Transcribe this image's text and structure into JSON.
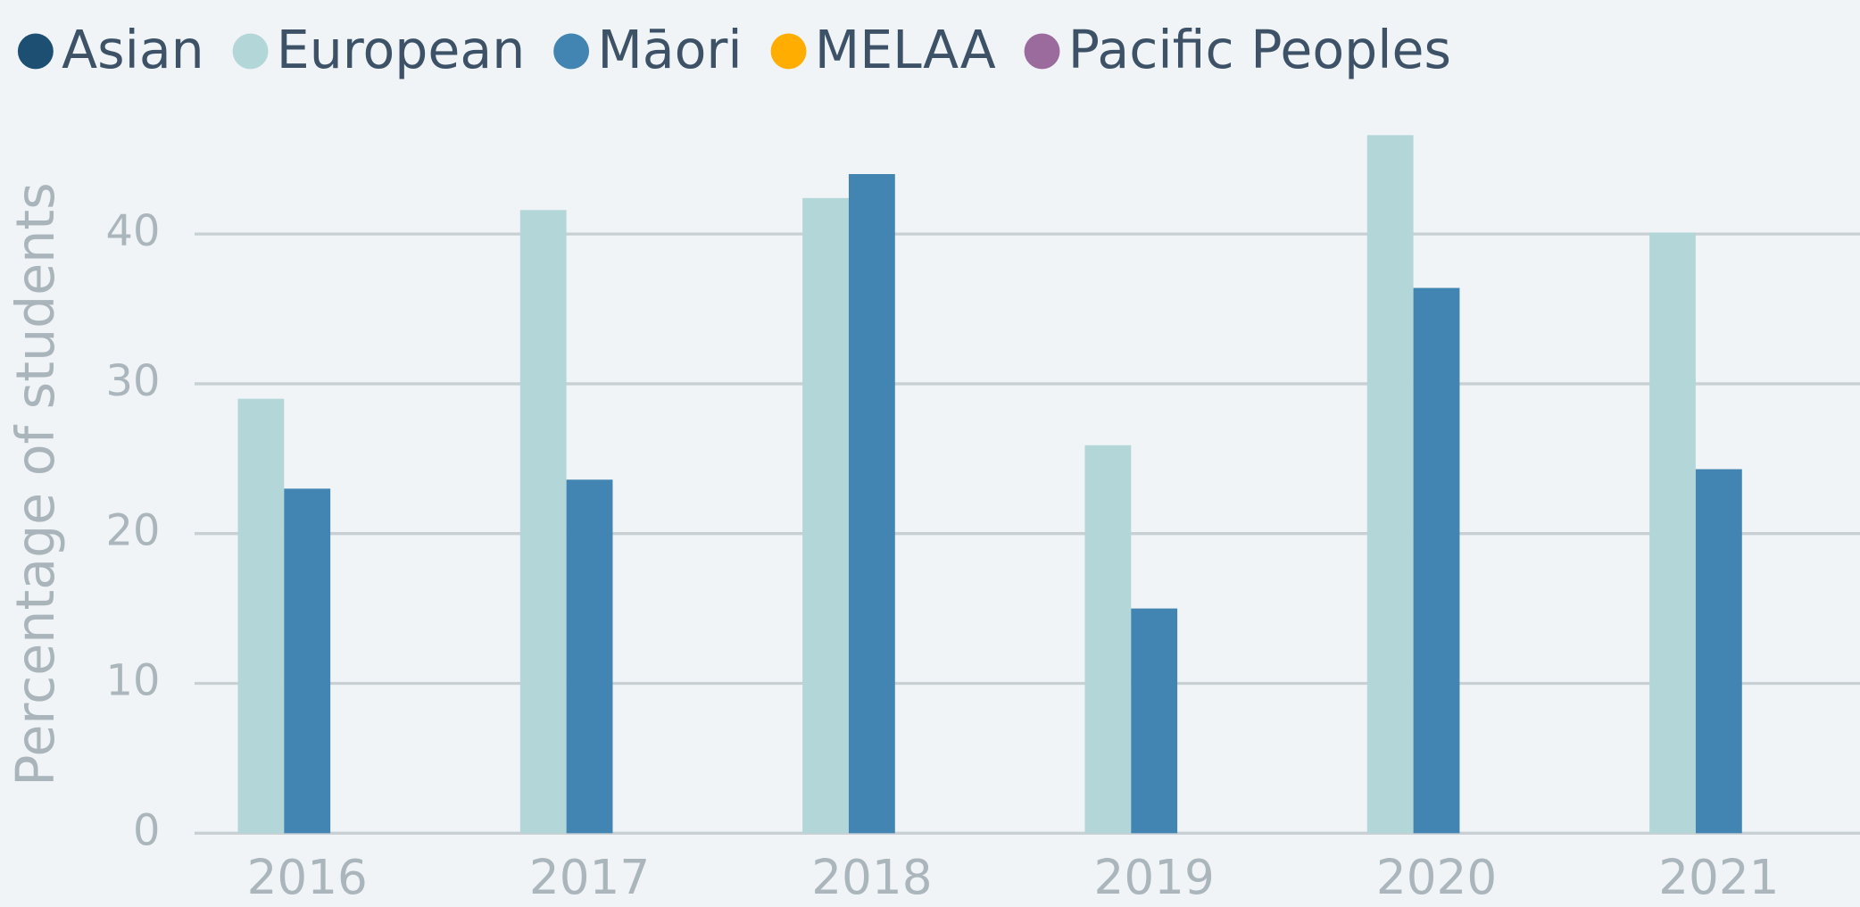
{
  "chart_data": {
    "type": "bar",
    "y_label": "Percentage of students",
    "categories": [
      "2016",
      "2017",
      "2018",
      "2019",
      "2020",
      "2021"
    ],
    "series": [
      {
        "name": "Asian",
        "color": "#1d4f73",
        "values": [
          null,
          null,
          null,
          null,
          null,
          null
        ]
      },
      {
        "name": "European",
        "color": "#b3d7d8",
        "values": [
          29.0,
          41.6,
          42.4,
          25.9,
          46.6,
          40.1
        ]
      },
      {
        "name": "Māori",
        "color": "#4285b2",
        "values": [
          23.0,
          23.6,
          44.0,
          15.0,
          36.4,
          24.3
        ]
      },
      {
        "name": "MELAA",
        "color": "#ffad00",
        "values": [
          null,
          null,
          null,
          null,
          null,
          null
        ]
      },
      {
        "name": "Pacific Peoples",
        "color": "#9b6b9e",
        "values": [
          null,
          null,
          null,
          null,
          null,
          null
        ]
      }
    ],
    "ylim": [
      0,
      48
    ],
    "yticks": [
      0,
      10,
      20,
      30,
      40
    ],
    "grid": true,
    "legend": "top"
  }
}
